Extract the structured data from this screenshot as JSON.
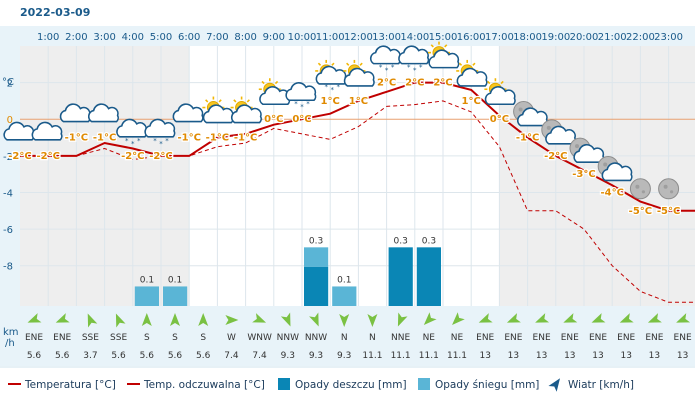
{
  "date_label": "2022-03-09",
  "units": {
    "temp_axis": "°C",
    "wind_axis": [
      "km",
      "/h"
    ]
  },
  "colors": {
    "temperature": "#c00000",
    "feels_like": "#c00000",
    "rain": "#0a86b5",
    "snow": "#5ab5d6",
    "night_band": "#eeeeee",
    "day_band": "#ffffff",
    "panel": "#e8f3f9",
    "zero_line": "#e8a070",
    "temp_label": "#e08a00",
    "wind_arrow": "#7ac143"
  },
  "chart_data": {
    "type": "line",
    "x": [
      "1:00",
      "2:00",
      "3:00",
      "4:00",
      "5:00",
      "6:00",
      "7:00",
      "8:00",
      "9:00",
      "10:00",
      "11:00",
      "12:00",
      "13:00",
      "14:00",
      "15:00",
      "16:00",
      "17:00",
      "18:00",
      "19:00",
      "20:00",
      "21:00",
      "22:00",
      "23:00"
    ],
    "y_ticks": [
      2,
      0,
      -2,
      -4,
      -6,
      -8
    ],
    "ylim": [
      -10.2,
      4.0
    ],
    "series": [
      {
        "name": "Temperatura [°C]",
        "values": [
          -2,
          -2,
          -1.3,
          -1.6,
          -2,
          -2,
          -1,
          -0.8,
          -0.3,
          0,
          0.3,
          1,
          1.5,
          2,
          2,
          1.6,
          0.2,
          -1,
          -2,
          -2.8,
          -3.6,
          -4.5,
          -5
        ]
      },
      {
        "name": "Temp. odczuwalna [°C]",
        "values": [
          -2,
          -2,
          -1.6,
          -2.2,
          -2,
          -2,
          -1.5,
          -1.3,
          -0.5,
          -0.8,
          -1.1,
          -0.4,
          0.7,
          0.8,
          1,
          0.4,
          -1.5,
          -5,
          -5,
          -6,
          -8,
          -9.4,
          -10
        ]
      }
    ],
    "icon_temps": [
      -2,
      -2,
      -1,
      -1,
      -2,
      -2,
      -1,
      -1,
      -1,
      0,
      0,
      1,
      1,
      2,
      2,
      2,
      1,
      0,
      -1,
      -2,
      -3,
      -4,
      -5,
      -5
    ],
    "icon_temp_labels": [
      "-2°C",
      "-2°C",
      "-1°C",
      "-1°C",
      "-2°C",
      "-2°C",
      "-1°C",
      "-1°C",
      "-1°C",
      "0°C",
      "0°C",
      "1°C",
      "1°C",
      "2°C",
      "2°C",
      "2°C",
      "1°C",
      "0°C",
      "-1°C",
      "-2°C",
      "-3°C",
      "-4°C",
      "-5°C",
      "-5°C"
    ],
    "icons": [
      "cloud",
      "cloud",
      "cloud",
      "cloud",
      "cloud-snow",
      "cloud-snow",
      "cloud",
      "sun-cloud",
      "sun-cloud",
      "sun-cloud",
      "cloud-snow",
      "sun-snow",
      "sun-cloud",
      "cloud-snow",
      "cloud-snow",
      "sun-cloud",
      "sun-cloud",
      "sun-cloud",
      "moon-cloud",
      "moon-cloud",
      "moon-cloud",
      "moon-cloud",
      "moon",
      "moon"
    ],
    "precip_scale_max": 0.45,
    "precipitation": [
      {
        "index": 4,
        "value": 0.1,
        "label": "0.1",
        "kind": "snow"
      },
      {
        "index": 5,
        "value": 0.1,
        "label": "0.1",
        "kind": "snow"
      },
      {
        "index": 10,
        "value": 0.3,
        "label": "0.3",
        "kind": "mixed",
        "snow_part": 0.1
      },
      {
        "index": 11,
        "value": 0.1,
        "label": "0.1",
        "kind": "snow"
      },
      {
        "index": 13,
        "value": 0.3,
        "label": "0.3",
        "kind": "rain"
      },
      {
        "index": 14,
        "value": 0.3,
        "label": "0.3",
        "kind": "rain"
      }
    ],
    "wind_dirs": [
      "ENE",
      "ENE",
      "SSE",
      "SSE",
      "S",
      "S",
      "S",
      "W",
      "WNW",
      "NNW",
      "NNW",
      "N",
      "N",
      "NNE",
      "NE",
      "NE",
      "ENE",
      "ENE",
      "ENE",
      "ENE",
      "ENE",
      "ENE",
      "ENE",
      "ENE"
    ],
    "wind_speeds": [
      "5.6",
      "5.6",
      "3.7",
      "5.6",
      "5.6",
      "5.6",
      "5.6",
      "7.4",
      "7.4",
      "9.3",
      "9.3",
      "9.3",
      "11.1",
      "11.1",
      "11.1",
      "11.1",
      "13",
      "13",
      "13",
      "13",
      "13",
      "13",
      "13",
      "13"
    ],
    "legend": [
      {
        "label": "Temperatura [°C]",
        "kind": "line"
      },
      {
        "label": "Temp. odczuwalna [°C]",
        "kind": "line"
      },
      {
        "label": "Opady deszczu [mm]",
        "kind": "rain"
      },
      {
        "label": "Opady śniegu [mm]",
        "kind": "snow"
      },
      {
        "label": "Wiatr [km/h]",
        "kind": "wind"
      }
    ],
    "legend_placement": "bottom",
    "grid": true
  }
}
